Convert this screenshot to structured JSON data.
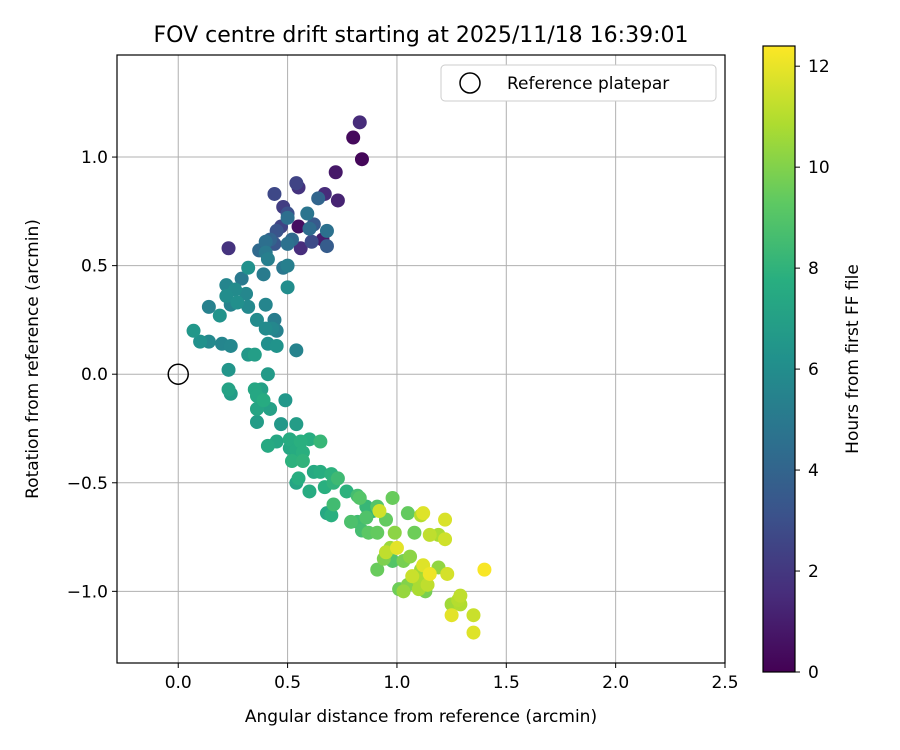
{
  "chart_data": {
    "type": "scatter",
    "title": "FOV centre drift starting at 2025/11/18 16:39:01",
    "xlabel": "Angular distance from reference (arcmin)",
    "ylabel": "Rotation from reference (arcmin)",
    "xlim": [
      -0.28,
      2.5
    ],
    "ylim": [
      -1.33,
      1.47
    ],
    "xticks": [
      0.0,
      0.5,
      1.0,
      1.5,
      2.0,
      2.5
    ],
    "xtick_labels": [
      "0.0",
      "0.5",
      "1.0",
      "1.5",
      "2.0",
      "2.5"
    ],
    "yticks": [
      -1.0,
      -0.5,
      0.0,
      0.5,
      1.0
    ],
    "ytick_labels": [
      "−1.0",
      "−0.5",
      "0.0",
      "0.5",
      "1.0"
    ],
    "grid": true,
    "legend": {
      "location": "top-right",
      "entries": [
        "Reference platepar"
      ]
    },
    "reference_point": {
      "x": 0.0,
      "y": 0.0,
      "label": "Reference platepar"
    },
    "colorbar": {
      "label": "Hours from first FF file",
      "colormap": "viridis",
      "range": [
        0,
        12.4
      ],
      "ticks": [
        0,
        2,
        4,
        6,
        8,
        10,
        12
      ],
      "tick_labels": [
        "0",
        "2",
        "4",
        "6",
        "8",
        "10",
        "12"
      ]
    },
    "series": [
      {
        "name": "FOV centre drift",
        "points": [
          {
            "x": 0.8,
            "y": 1.09,
            "t": 0.3
          },
          {
            "x": 0.83,
            "y": 1.16,
            "t": 1.5
          },
          {
            "x": 0.84,
            "y": 0.99,
            "t": 0.2
          },
          {
            "x": 0.72,
            "y": 0.93,
            "t": 0.8
          },
          {
            "x": 0.73,
            "y": 0.8,
            "t": 1.2
          },
          {
            "x": 0.67,
            "y": 0.83,
            "t": 1.5
          },
          {
            "x": 0.54,
            "y": 0.88,
            "t": 2.5
          },
          {
            "x": 0.55,
            "y": 0.86,
            "t": 1.8
          },
          {
            "x": 0.44,
            "y": 0.83,
            "t": 2.7
          },
          {
            "x": 0.48,
            "y": 0.77,
            "t": 2.2
          },
          {
            "x": 0.5,
            "y": 0.74,
            "t": 3.0
          },
          {
            "x": 0.5,
            "y": 0.72,
            "t": 4.5
          },
          {
            "x": 0.55,
            "y": 0.68,
            "t": 0.5
          },
          {
            "x": 0.47,
            "y": 0.68,
            "t": 2.5
          },
          {
            "x": 0.45,
            "y": 0.66,
            "t": 3.2
          },
          {
            "x": 0.59,
            "y": 0.74,
            "t": 4.8
          },
          {
            "x": 0.62,
            "y": 0.69,
            "t": 3.5
          },
          {
            "x": 0.6,
            "y": 0.67,
            "t": 4.3
          },
          {
            "x": 0.64,
            "y": 0.81,
            "t": 4.0
          },
          {
            "x": 0.68,
            "y": 0.66,
            "t": 4.6
          },
          {
            "x": 0.66,
            "y": 0.62,
            "t": 1.0
          },
          {
            "x": 0.68,
            "y": 0.59,
            "t": 3.6
          },
          {
            "x": 0.61,
            "y": 0.61,
            "t": 2.8
          },
          {
            "x": 0.56,
            "y": 0.58,
            "t": 1.6
          },
          {
            "x": 0.52,
            "y": 0.62,
            "t": 4.2
          },
          {
            "x": 0.5,
            "y": 0.6,
            "t": 4.6
          },
          {
            "x": 0.44,
            "y": 0.6,
            "t": 3.3
          },
          {
            "x": 0.4,
            "y": 0.61,
            "t": 4.5
          },
          {
            "x": 0.42,
            "y": 0.62,
            "t": 3.9
          },
          {
            "x": 0.37,
            "y": 0.57,
            "t": 4.2
          },
          {
            "x": 0.4,
            "y": 0.56,
            "t": 5.0
          },
          {
            "x": 0.23,
            "y": 0.58,
            "t": 1.8
          },
          {
            "x": 0.41,
            "y": 0.53,
            "t": 5.3
          },
          {
            "x": 0.48,
            "y": 0.49,
            "t": 4.9
          },
          {
            "x": 0.5,
            "y": 0.5,
            "t": 5.3
          },
          {
            "x": 0.39,
            "y": 0.46,
            "t": 5.1
          },
          {
            "x": 0.32,
            "y": 0.49,
            "t": 6.2
          },
          {
            "x": 0.29,
            "y": 0.44,
            "t": 5.0
          },
          {
            "x": 0.22,
            "y": 0.41,
            "t": 5.6
          },
          {
            "x": 0.26,
            "y": 0.39,
            "t": 5.9
          },
          {
            "x": 0.31,
            "y": 0.37,
            "t": 5.7
          },
          {
            "x": 0.22,
            "y": 0.36,
            "t": 6.0
          },
          {
            "x": 0.27,
            "y": 0.33,
            "t": 6.1
          },
          {
            "x": 0.24,
            "y": 0.32,
            "t": 5.5
          },
          {
            "x": 0.14,
            "y": 0.31,
            "t": 5.4
          },
          {
            "x": 0.32,
            "y": 0.31,
            "t": 5.8
          },
          {
            "x": 0.4,
            "y": 0.32,
            "t": 5.6
          },
          {
            "x": 0.5,
            "y": 0.4,
            "t": 6.0
          },
          {
            "x": 0.19,
            "y": 0.27,
            "t": 6.3
          },
          {
            "x": 0.36,
            "y": 0.25,
            "t": 5.9
          },
          {
            "x": 0.44,
            "y": 0.25,
            "t": 5.2
          },
          {
            "x": 0.43,
            "y": 0.21,
            "t": 5.7
          },
          {
            "x": 0.4,
            "y": 0.21,
            "t": 5.9
          },
          {
            "x": 0.45,
            "y": 0.2,
            "t": 5.4
          },
          {
            "x": 0.07,
            "y": 0.2,
            "t": 6.5
          },
          {
            "x": 0.1,
            "y": 0.15,
            "t": 6.2
          },
          {
            "x": 0.14,
            "y": 0.15,
            "t": 5.8
          },
          {
            "x": 0.2,
            "y": 0.14,
            "t": 5.6
          },
          {
            "x": 0.24,
            "y": 0.13,
            "t": 5.7
          },
          {
            "x": 0.41,
            "y": 0.14,
            "t": 6.1
          },
          {
            "x": 0.45,
            "y": 0.13,
            "t": 6.3
          },
          {
            "x": 0.54,
            "y": 0.11,
            "t": 5.5
          },
          {
            "x": 0.32,
            "y": 0.09,
            "t": 6.6
          },
          {
            "x": 0.35,
            "y": 0.09,
            "t": 6.9
          },
          {
            "x": 0.23,
            "y": 0.02,
            "t": 6.4
          },
          {
            "x": 0.41,
            "y": 0.0,
            "t": 6.7
          },
          {
            "x": 0.23,
            "y": -0.07,
            "t": 7.1
          },
          {
            "x": 0.35,
            "y": -0.07,
            "t": 7.3
          },
          {
            "x": 0.38,
            "y": -0.07,
            "t": 7.0
          },
          {
            "x": 0.24,
            "y": -0.09,
            "t": 6.8
          },
          {
            "x": 0.36,
            "y": -0.1,
            "t": 7.4
          },
          {
            "x": 0.39,
            "y": -0.12,
            "t": 7.6
          },
          {
            "x": 0.49,
            "y": -0.12,
            "t": 6.5
          },
          {
            "x": 0.36,
            "y": -0.16,
            "t": 7.2
          },
          {
            "x": 0.42,
            "y": -0.16,
            "t": 7.0
          },
          {
            "x": 0.36,
            "y": -0.22,
            "t": 6.8
          },
          {
            "x": 0.47,
            "y": -0.23,
            "t": 6.6
          },
          {
            "x": 0.54,
            "y": -0.23,
            "t": 6.8
          },
          {
            "x": 0.51,
            "y": -0.3,
            "t": 7.6
          },
          {
            "x": 0.45,
            "y": -0.31,
            "t": 7.3
          },
          {
            "x": 0.56,
            "y": -0.31,
            "t": 7.8
          },
          {
            "x": 0.41,
            "y": -0.33,
            "t": 7.5
          },
          {
            "x": 0.51,
            "y": -0.34,
            "t": 7.4
          },
          {
            "x": 0.54,
            "y": -0.35,
            "t": 7.6
          },
          {
            "x": 0.57,
            "y": -0.36,
            "t": 7.8
          },
          {
            "x": 0.52,
            "y": -0.4,
            "t": 7.9
          },
          {
            "x": 0.57,
            "y": -0.4,
            "t": 8.0
          },
          {
            "x": 0.6,
            "y": -0.3,
            "t": 7.7
          },
          {
            "x": 0.65,
            "y": -0.31,
            "t": 8.2
          },
          {
            "x": 0.62,
            "y": -0.45,
            "t": 7.5
          },
          {
            "x": 0.65,
            "y": -0.45,
            "t": 7.7
          },
          {
            "x": 0.7,
            "y": -0.46,
            "t": 7.9
          },
          {
            "x": 0.55,
            "y": -0.48,
            "t": 7.7
          },
          {
            "x": 0.73,
            "y": -0.48,
            "t": 8.4
          },
          {
            "x": 0.54,
            "y": -0.5,
            "t": 7.2
          },
          {
            "x": 0.6,
            "y": -0.54,
            "t": 7.6
          },
          {
            "x": 0.67,
            "y": -0.52,
            "t": 7.8
          },
          {
            "x": 0.71,
            "y": -0.5,
            "t": 8.0
          },
          {
            "x": 0.77,
            "y": -0.54,
            "t": 7.9
          },
          {
            "x": 0.82,
            "y": -0.56,
            "t": 8.6
          },
          {
            "x": 0.83,
            "y": -0.57,
            "t": 9.0
          },
          {
            "x": 0.86,
            "y": -0.61,
            "t": 8.2
          },
          {
            "x": 0.89,
            "y": -0.63,
            "t": 8.0
          },
          {
            "x": 0.71,
            "y": -0.6,
            "t": 8.5
          },
          {
            "x": 0.7,
            "y": -0.65,
            "t": 7.8
          },
          {
            "x": 0.68,
            "y": -0.64,
            "t": 7.4
          },
          {
            "x": 0.79,
            "y": -0.68,
            "t": 8.8
          },
          {
            "x": 0.82,
            "y": -0.68,
            "t": 8.5
          },
          {
            "x": 0.86,
            "y": -0.66,
            "t": 8.9
          },
          {
            "x": 0.92,
            "y": -0.63,
            "t": 11.5
          },
          {
            "x": 0.91,
            "y": -0.61,
            "t": 9.0
          },
          {
            "x": 0.98,
            "y": -0.57,
            "t": 9.5
          },
          {
            "x": 0.95,
            "y": -0.67,
            "t": 9.4
          },
          {
            "x": 0.84,
            "y": -0.72,
            "t": 8.6
          },
          {
            "x": 0.87,
            "y": -0.73,
            "t": 9.2
          },
          {
            "x": 0.91,
            "y": -0.73,
            "t": 9.4
          },
          {
            "x": 0.99,
            "y": -0.73,
            "t": 10.2
          },
          {
            "x": 1.05,
            "y": -0.64,
            "t": 9.4
          },
          {
            "x": 1.11,
            "y": -0.65,
            "t": 11.0
          },
          {
            "x": 1.12,
            "y": -0.64,
            "t": 11.8
          },
          {
            "x": 1.22,
            "y": -0.67,
            "t": 11.7
          },
          {
            "x": 1.08,
            "y": -0.73,
            "t": 9.6
          },
          {
            "x": 1.15,
            "y": -0.74,
            "t": 11.2
          },
          {
            "x": 1.19,
            "y": -0.74,
            "t": 10.8
          },
          {
            "x": 1.22,
            "y": -0.76,
            "t": 11.5
          },
          {
            "x": 0.97,
            "y": -0.8,
            "t": 10.5
          },
          {
            "x": 0.95,
            "y": -0.82,
            "t": 11.2
          },
          {
            "x": 1.0,
            "y": -0.8,
            "t": 11.9
          },
          {
            "x": 0.91,
            "y": -0.9,
            "t": 9.5
          },
          {
            "x": 0.94,
            "y": -0.85,
            "t": 9.9
          },
          {
            "x": 0.98,
            "y": -0.86,
            "t": 9.0
          },
          {
            "x": 1.03,
            "y": -0.86,
            "t": 9.8
          },
          {
            "x": 1.06,
            "y": -0.84,
            "t": 10.2
          },
          {
            "x": 1.11,
            "y": -0.9,
            "t": 10.6
          },
          {
            "x": 1.12,
            "y": -0.88,
            "t": 11.8
          },
          {
            "x": 1.15,
            "y": -0.92,
            "t": 12.1
          },
          {
            "x": 1.19,
            "y": -0.89,
            "t": 10.3
          },
          {
            "x": 1.23,
            "y": -0.92,
            "t": 11.6
          },
          {
            "x": 1.07,
            "y": -0.93,
            "t": 11.4
          },
          {
            "x": 1.1,
            "y": -0.95,
            "t": 10.8
          },
          {
            "x": 1.14,
            "y": -0.97,
            "t": 11.2
          },
          {
            "x": 1.05,
            "y": -0.97,
            "t": 10.0
          },
          {
            "x": 1.01,
            "y": -0.99,
            "t": 9.6
          },
          {
            "x": 1.03,
            "y": -1.0,
            "t": 10.4
          },
          {
            "x": 1.1,
            "y": -0.99,
            "t": 10.8
          },
          {
            "x": 1.13,
            "y": -1.0,
            "t": 9.8
          },
          {
            "x": 1.25,
            "y": -1.06,
            "t": 10.6
          },
          {
            "x": 1.28,
            "y": -1.04,
            "t": 11.0
          },
          {
            "x": 1.29,
            "y": -1.02,
            "t": 11.2
          },
          {
            "x": 1.29,
            "y": -1.06,
            "t": 10.9
          },
          {
            "x": 1.25,
            "y": -1.11,
            "t": 11.9
          },
          {
            "x": 1.35,
            "y": -1.11,
            "t": 11.4
          },
          {
            "x": 1.35,
            "y": -1.19,
            "t": 11.8
          },
          {
            "x": 1.4,
            "y": -0.9,
            "t": 12.3
          }
        ]
      }
    ]
  }
}
